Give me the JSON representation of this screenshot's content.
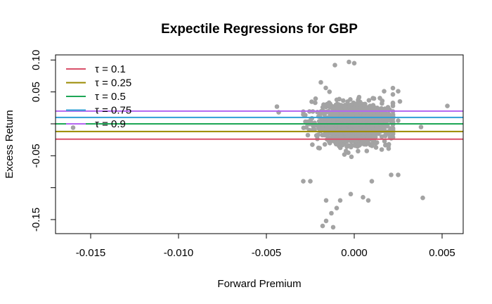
{
  "chart_data": {
    "type": "scatter",
    "title": "Expectile Regressions for GBP",
    "xlabel": "Forward Premium",
    "ylabel": "Excess Return",
    "xlim": [
      -0.017,
      0.0062
    ],
    "ylim": [
      -0.172,
      0.108
    ],
    "x_ticks": [
      {
        "value": -0.015,
        "label": "-0.015"
      },
      {
        "value": -0.01,
        "label": "-0.010"
      },
      {
        "value": -0.005,
        "label": "-0.005"
      },
      {
        "value": 0.0,
        "label": "0.000"
      },
      {
        "value": 0.005,
        "label": "0.005"
      }
    ],
    "y_ticks": [
      {
        "value": 0.1,
        "label": "0.10"
      },
      {
        "value": 0.05,
        "label": "0.05"
      },
      {
        "value": 0.0,
        "label": ""
      },
      {
        "value": -0.05,
        "label": "-0.05"
      },
      {
        "value": -0.1,
        "label": ""
      },
      {
        "value": -0.15,
        "label": "-0.15"
      }
    ],
    "point_color": "#A3A3A3",
    "series": [
      {
        "name": "τ = 0.1",
        "color": "#D9506A",
        "intercept": -0.024,
        "slope": 0
      },
      {
        "name": "τ = 0.25",
        "color": "#9A8A00",
        "intercept": -0.012,
        "slope": 0
      },
      {
        "name": "τ = 0.5",
        "color": "#1EA655",
        "intercept": 0.0,
        "slope": 0
      },
      {
        "name": "τ = 0.75",
        "color": "#2F9FD6",
        "intercept": 0.01,
        "slope": 0
      },
      {
        "name": "τ = 0.9",
        "color": "#B266F0",
        "intercept": 0.02,
        "slope": 0
      }
    ],
    "legend_position": "top-left",
    "grid": false,
    "points": [
      [
        -0.016,
        -0.006
      ],
      [
        -0.0043,
        0.018
      ],
      [
        -0.0044,
        0.027
      ],
      [
        0.0053,
        0.028
      ],
      [
        0.0039,
        -0.116
      ],
      [
        0.0038,
        -0.005
      ],
      [
        0.0025,
        0.005
      ],
      [
        0.0021,
        -0.08
      ],
      [
        0.0025,
        -0.08
      ],
      [
        0.0022,
        0.046
      ],
      [
        0.0022,
        0.056
      ],
      [
        0.0025,
        0.051
      ],
      [
        0.0026,
        0.035
      ],
      [
        -0.0011,
        0.092
      ],
      [
        -0.0003,
        0.097
      ],
      [
        0.0,
        0.095
      ],
      [
        -0.0016,
        -0.152
      ],
      [
        -0.0012,
        -0.162
      ],
      [
        -0.0018,
        -0.16
      ],
      [
        -0.0013,
        -0.14
      ],
      [
        -0.001,
        -0.132
      ],
      [
        -0.0008,
        -0.12
      ],
      [
        -0.0016,
        -0.12
      ],
      [
        -0.0002,
        -0.11
      ],
      [
        0.0008,
        -0.12
      ],
      [
        0.0005,
        -0.115
      ],
      [
        -0.0029,
        -0.09
      ],
      [
        -0.0025,
        -0.09
      ],
      [
        0.0017,
        0.051
      ],
      [
        -0.0019,
        0.065
      ],
      [
        0.001,
        -0.09
      ]
    ]
  }
}
